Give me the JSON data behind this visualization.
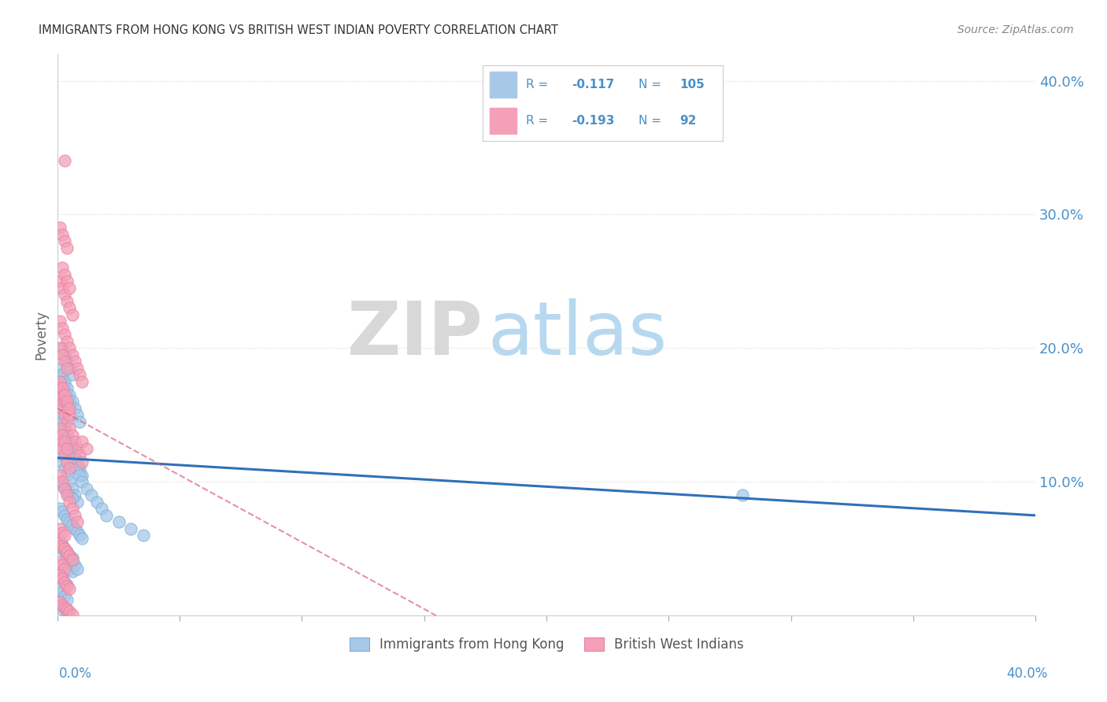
{
  "title": "IMMIGRANTS FROM HONG KONG VS BRITISH WEST INDIAN POVERTY CORRELATION CHART",
  "source": "Source: ZipAtlas.com",
  "ylabel": "Poverty",
  "ytick_labels": [
    "10.0%",
    "20.0%",
    "30.0%",
    "40.0%"
  ],
  "ytick_values": [
    0.1,
    0.2,
    0.3,
    0.4
  ],
  "xlim": [
    0.0,
    0.4
  ],
  "ylim": [
    0.0,
    0.42
  ],
  "legend_label1": "Immigrants from Hong Kong",
  "legend_label2": "British West Indians",
  "R1": -0.117,
  "N1": 105,
  "R2": -0.193,
  "N2": 92,
  "blue_color": "#a8c8e8",
  "pink_color": "#f4a0b8",
  "blue_scatter_edge": "#7ab0d8",
  "pink_scatter_edge": "#e880a0",
  "blue_line_color": "#3070b8",
  "pink_line_color": "#e06080",
  "title_color": "#333333",
  "axis_color": "#4a90c8",
  "watermark_zip_color": "#d8d8d8",
  "watermark_atlas_color": "#b8d8f0",
  "background_color": "#ffffff",
  "grid_color": "#d8d8d8",
  "blue_scatter_x": [
    0.001,
    0.002,
    0.003,
    0.004,
    0.005,
    0.006,
    0.007,
    0.008,
    0.009,
    0.01,
    0.001,
    0.002,
    0.003,
    0.004,
    0.005,
    0.006,
    0.007,
    0.008,
    0.002,
    0.003,
    0.001,
    0.002,
    0.003,
    0.004,
    0.005,
    0.001,
    0.002,
    0.003,
    0.004,
    0.005,
    0.001,
    0.002,
    0.003,
    0.004,
    0.005,
    0.006,
    0.007,
    0.008,
    0.009,
    0.01,
    0.001,
    0.002,
    0.003,
    0.004,
    0.005,
    0.006,
    0.003,
    0.004,
    0.005,
    0.006,
    0.001,
    0.002,
    0.003,
    0.004,
    0.001,
    0.002,
    0.003,
    0.004,
    0.005,
    0.006,
    0.002,
    0.003,
    0.004,
    0.005,
    0.006,
    0.007,
    0.008,
    0.009,
    0.01,
    0.012,
    0.014,
    0.016,
    0.018,
    0.02,
    0.025,
    0.03,
    0.035,
    0.001,
    0.002,
    0.003,
    0.004,
    0.005,
    0.006,
    0.007,
    0.008,
    0.009,
    0.002,
    0.003,
    0.004,
    0.005,
    0.006,
    0.007,
    0.008,
    0.001,
    0.002,
    0.003,
    0.004,
    0.001,
    0.002,
    0.28,
    0.002,
    0.003,
    0.004,
    0.005,
    0.006
  ],
  "blue_scatter_y": [
    0.15,
    0.145,
    0.14,
    0.135,
    0.13,
    0.125,
    0.12,
    0.115,
    0.11,
    0.105,
    0.12,
    0.115,
    0.11,
    0.105,
    0.1,
    0.095,
    0.09,
    0.085,
    0.165,
    0.16,
    0.175,
    0.17,
    0.165,
    0.16,
    0.155,
    0.18,
    0.175,
    0.17,
    0.165,
    0.16,
    0.08,
    0.078,
    0.075,
    0.072,
    0.07,
    0.068,
    0.065,
    0.063,
    0.06,
    0.058,
    0.055,
    0.053,
    0.05,
    0.048,
    0.045,
    0.043,
    0.04,
    0.038,
    0.035,
    0.033,
    0.03,
    0.028,
    0.025,
    0.023,
    0.1,
    0.098,
    0.095,
    0.092,
    0.09,
    0.088,
    0.14,
    0.135,
    0.13,
    0.125,
    0.12,
    0.115,
    0.11,
    0.105,
    0.1,
    0.095,
    0.09,
    0.085,
    0.08,
    0.075,
    0.07,
    0.065,
    0.06,
    0.185,
    0.18,
    0.175,
    0.17,
    0.165,
    0.16,
    0.155,
    0.15,
    0.145,
    0.05,
    0.048,
    0.045,
    0.042,
    0.04,
    0.038,
    0.035,
    0.02,
    0.018,
    0.015,
    0.012,
    0.008,
    0.005,
    0.09,
    0.2,
    0.195,
    0.19,
    0.185,
    0.18
  ],
  "pink_scatter_x": [
    0.001,
    0.002,
    0.003,
    0.004,
    0.005,
    0.006,
    0.007,
    0.008,
    0.009,
    0.01,
    0.001,
    0.002,
    0.003,
    0.004,
    0.005,
    0.006,
    0.007,
    0.008,
    0.009,
    0.01,
    0.001,
    0.002,
    0.003,
    0.004,
    0.005,
    0.006,
    0.001,
    0.002,
    0.003,
    0.004,
    0.001,
    0.002,
    0.003,
    0.004,
    0.005,
    0.001,
    0.002,
    0.003,
    0.004,
    0.005,
    0.001,
    0.002,
    0.003,
    0.004,
    0.005,
    0.006,
    0.007,
    0.008,
    0.001,
    0.002,
    0.003,
    0.004,
    0.001,
    0.002,
    0.003,
    0.004,
    0.005,
    0.006,
    0.001,
    0.002,
    0.003,
    0.004,
    0.005,
    0.001,
    0.002,
    0.003,
    0.004,
    0.001,
    0.002,
    0.003,
    0.01,
    0.012,
    0.001,
    0.002,
    0.003,
    0.004,
    0.001,
    0.002,
    0.003,
    0.001,
    0.002,
    0.003,
    0.004,
    0.005,
    0.003,
    0.004,
    0.005,
    0.006,
    0.002,
    0.003,
    0.004,
    0.005
  ],
  "pink_scatter_y": [
    0.22,
    0.215,
    0.21,
    0.205,
    0.2,
    0.195,
    0.19,
    0.185,
    0.18,
    0.175,
    0.16,
    0.155,
    0.15,
    0.145,
    0.14,
    0.135,
    0.13,
    0.125,
    0.12,
    0.115,
    0.25,
    0.245,
    0.24,
    0.235,
    0.23,
    0.225,
    0.29,
    0.285,
    0.28,
    0.275,
    0.17,
    0.165,
    0.16,
    0.155,
    0.15,
    0.13,
    0.125,
    0.12,
    0.115,
    0.11,
    0.105,
    0.1,
    0.095,
    0.09,
    0.085,
    0.08,
    0.075,
    0.07,
    0.2,
    0.195,
    0.19,
    0.185,
    0.055,
    0.052,
    0.05,
    0.048,
    0.045,
    0.042,
    0.175,
    0.17,
    0.165,
    0.16,
    0.155,
    0.14,
    0.135,
    0.13,
    0.125,
    0.065,
    0.062,
    0.06,
    0.13,
    0.125,
    0.01,
    0.008,
    0.006,
    0.004,
    0.04,
    0.038,
    0.035,
    0.03,
    0.028,
    0.025,
    0.022,
    0.02,
    0.34,
    0.005,
    0.003,
    0.001,
    0.26,
    0.255,
    0.25,
    0.245
  ],
  "blue_line_x": [
    0.0,
    0.4
  ],
  "blue_line_y": [
    0.118,
    0.075
  ],
  "pink_line_x": [
    0.0,
    0.155
  ],
  "pink_line_y": [
    0.155,
    0.0
  ],
  "watermark_zip": "ZIP",
  "watermark_atlas": "atlas"
}
